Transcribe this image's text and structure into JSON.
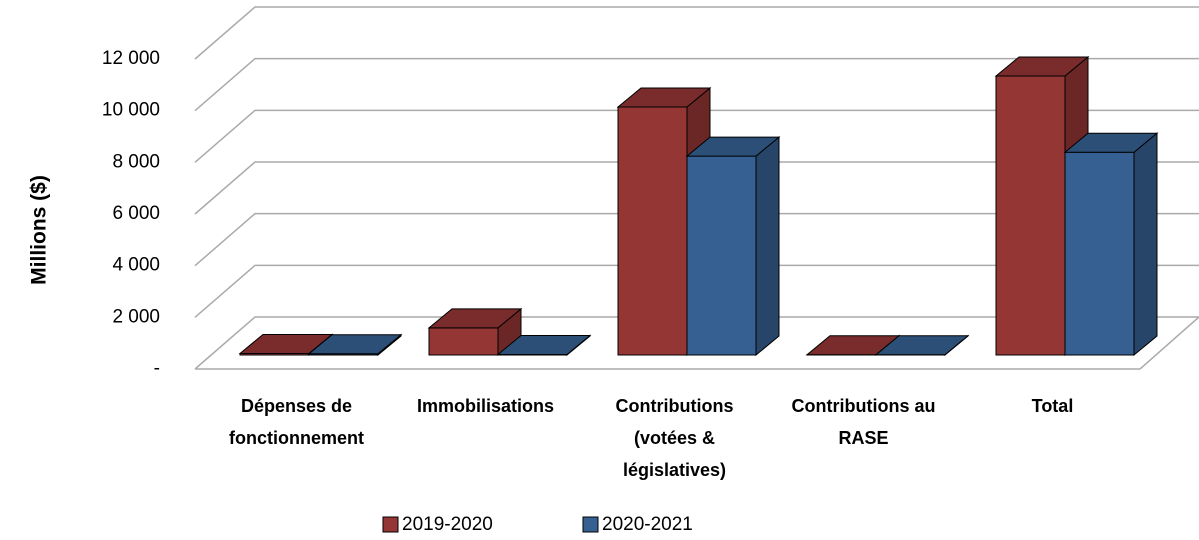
{
  "chart_data": {
    "type": "bar3d",
    "y_label": "Millions ($)",
    "categories": [
      "Dépenses de\nfonctionnement",
      "Immobilisations",
      "Contributions\n(votées &\nlégislatives)",
      "Contributions au\nRASE",
      "Total"
    ],
    "series": [
      {
        "name": "2019-2020",
        "color": "#943634",
        "values": [
          60,
          1050,
          9600,
          10,
          10800
        ]
      },
      {
        "name": "2020-2021",
        "color": "#366092",
        "values": [
          50,
          20,
          7700,
          10,
          7850
        ]
      }
    ],
    "ylim": [
      0,
      12000
    ],
    "yticks": [
      {
        "value": 0,
        "label": "-"
      },
      {
        "value": 2000,
        "label": "2 000"
      },
      {
        "value": 4000,
        "label": "4 000"
      },
      {
        "value": 6000,
        "label": "6 000"
      },
      {
        "value": 8000,
        "label": "8 000"
      },
      {
        "value": 10000,
        "label": "10 000"
      },
      {
        "value": 12000,
        "label": "12 000"
      }
    ],
    "grid": true,
    "legend": "bottom"
  }
}
